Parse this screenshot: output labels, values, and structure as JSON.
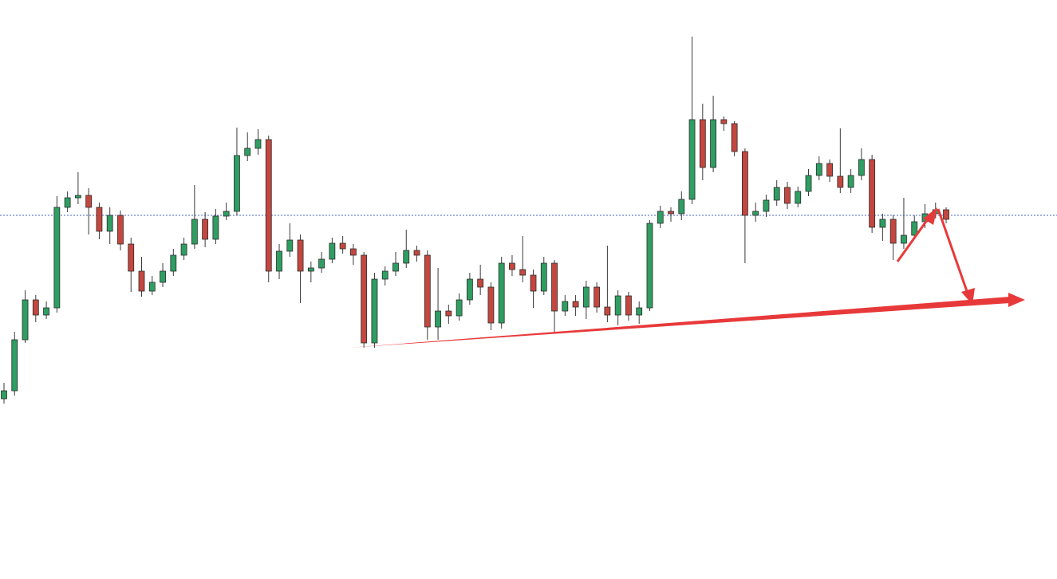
{
  "chart_data": {
    "type": "candlestick",
    "open": [
      226,
      236,
      300,
      350,
      331,
      340,
      466,
      478,
      481,
      466,
      436,
      456,
      420,
      386,
      361,
      372,
      386,
      406,
      420,
      451,
      426,
      455,
      461,
      531,
      540,
      551,
      386,
      411,
      425,
      386,
      390,
      401,
      421,
      414,
      406,
      296,
      376,
      386,
      396,
      412,
      406,
      316,
      336,
      330,
      350,
      376,
      366,
      321,
      396,
      388,
      381,
      361,
      396,
      336,
      348,
      341,
      366,
      341,
      331,
      355,
      331,
      340,
      446,
      461,
      458,
      476,
      576,
      516,
      576,
      571,
      536,
      456,
      461,
      475,
      491,
      471,
      486,
      506,
      521,
      505,
      491,
      506,
      526,
      441,
      451,
      421,
      431,
      448,
      458,
      463
    ],
    "high": [
      246,
      310,
      362,
      356,
      348,
      480,
      486,
      510,
      490,
      472,
      466,
      462,
      428,
      404,
      380,
      396,
      414,
      428,
      494,
      460,
      464,
      472,
      566,
      560,
      564,
      556,
      420,
      446,
      432,
      398,
      410,
      428,
      430,
      420,
      410,
      384,
      392,
      410,
      438,
      418,
      412,
      390,
      344,
      358,
      384,
      394,
      372,
      404,
      406,
      430,
      388,
      404,
      400,
      356,
      356,
      374,
      372,
      418,
      362,
      360,
      348,
      450,
      468,
      466,
      486,
      680,
      596,
      606,
      580,
      574,
      540,
      472,
      482,
      500,
      498,
      492,
      514,
      530,
      526,
      565,
      514,
      540,
      532,
      458,
      456,
      478,
      456,
      470,
      472,
      466
    ],
    "low": [
      220,
      230,
      296,
      322,
      326,
      334,
      460,
      470,
      432,
      426,
      420,
      412,
      360,
      354,
      356,
      366,
      380,
      400,
      414,
      416,
      420,
      450,
      456,
      524,
      532,
      372,
      376,
      404,
      346,
      372,
      384,
      396,
      408,
      394,
      290,
      290,
      368,
      380,
      390,
      398,
      300,
      300,
      320,
      324,
      344,
      356,
      312,
      314,
      380,
      372,
      340,
      356,
      310,
      330,
      330,
      326,
      334,
      322,
      318,
      324,
      320,
      336,
      440,
      448,
      450,
      470,
      500,
      510,
      562,
      530,
      396,
      448,
      454,
      468,
      464,
      466,
      480,
      500,
      498,
      484,
      484,
      500,
      434,
      424,
      400,
      414,
      426,
      440,
      452,
      446
    ],
    "close": [
      236,
      300,
      350,
      331,
      340,
      466,
      478,
      481,
      466,
      436,
      456,
      420,
      386,
      361,
      372,
      386,
      406,
      420,
      451,
      426,
      455,
      461,
      531,
      540,
      551,
      386,
      411,
      425,
      386,
      390,
      401,
      421,
      414,
      406,
      296,
      376,
      386,
      396,
      412,
      406,
      316,
      336,
      330,
      350,
      376,
      366,
      321,
      396,
      388,
      381,
      361,
      396,
      336,
      348,
      341,
      366,
      341,
      331,
      355,
      331,
      340,
      446,
      461,
      458,
      476,
      576,
      516,
      576,
      571,
      536,
      456,
      461,
      475,
      491,
      471,
      486,
      506,
      521,
      505,
      491,
      506,
      526,
      441,
      451,
      421,
      431,
      448,
      458,
      463,
      451
    ],
    "ylim": [
      0,
      726
    ],
    "hline": 456,
    "up_color": "#2e9e62",
    "down_color": "#c4473f",
    "hline_color": "#4a63c9"
  }
}
